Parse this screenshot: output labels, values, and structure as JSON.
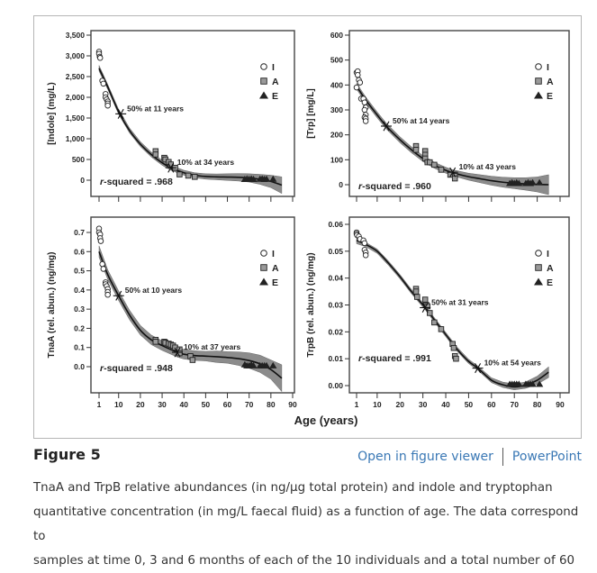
{
  "figure": {
    "title": "Figure 5",
    "links": {
      "viewer": "Open in figure viewer",
      "powerpoint": "PowerPoint"
    },
    "caption_lines": [
      "TnaA and TrpB relative abundances (in ng/µg total protein) and indole and tryptophan",
      "quantitative concentration (in mg/L faecal fluid) as a function of age. The data correspond to",
      "samples at time 0, 3 and 6 months of each of the 10 individuals and a total number of 60"
    ],
    "colors": {
      "link": "#3a78b5",
      "band": "#808080",
      "square_fill": "#9a9a9a",
      "line": "#111111"
    }
  },
  "chart_data": [
    {
      "id": "indole",
      "type": "scatter",
      "ylabel": "[Indole] (mg/L)",
      "xlabel": "",
      "ylim": [
        -650,
        3500
      ],
      "xlim": [
        -3,
        93
      ],
      "yticks": [
        0,
        500,
        1000,
        1500,
        2000,
        2500,
        3000,
        3500
      ],
      "ytick_labels": [
        "0",
        "500",
        "1,000",
        "1,500",
        "2,000",
        "2,500",
        "3,000",
        "3,500"
      ],
      "xticks": [
        1,
        10,
        20,
        30,
        40,
        50,
        60,
        70,
        80,
        90
      ],
      "xtick_labels_shown": false,
      "legend": [
        "I",
        "A",
        "E"
      ],
      "legend_position": "top-right",
      "r_squared": "r-squared = .968",
      "annotations": [
        {
          "text": "50% at 11 years",
          "x": 11,
          "y": 1600
        },
        {
          "text": "10% at 34 years",
          "x": 34,
          "y": 300
        }
      ],
      "fit": {
        "x": [
          1,
          5,
          10,
          15,
          20,
          25,
          30,
          34,
          40,
          45,
          50,
          55,
          60,
          65,
          70,
          75,
          80,
          85
        ],
        "y": [
          2700,
          2250,
          1650,
          1200,
          870,
          620,
          420,
          300,
          180,
          120,
          90,
          80,
          75,
          70,
          55,
          20,
          -30,
          -120
        ],
        "band": [
          70,
          60,
          60,
          60,
          60,
          60,
          60,
          60,
          60,
          60,
          65,
          70,
          80,
          90,
          100,
          120,
          150,
          200
        ]
      },
      "series": [
        {
          "name": "I",
          "marker": "circle",
          "x": [
            1,
            1,
            1.3,
            1.5,
            2.5,
            3,
            4,
            4,
            4.5,
            5,
            5,
            5
          ],
          "y": [
            3100,
            3050,
            2980,
            2950,
            2400,
            2330,
            2080,
            2000,
            1950,
            1900,
            1850,
            1800
          ]
        },
        {
          "name": "A",
          "marker": "square",
          "x": [
            27,
            27,
            31,
            31.5,
            33,
            34,
            36,
            38,
            42,
            45
          ],
          "y": [
            700,
            620,
            540,
            500,
            440,
            380,
            300,
            140,
            110,
            80
          ]
        },
        {
          "name": "E",
          "marker": "triangle",
          "x": [
            68,
            69,
            70,
            71,
            72,
            75,
            76,
            77,
            78,
            81
          ],
          "y": [
            20,
            30,
            20,
            30,
            20,
            25,
            30,
            20,
            25,
            25
          ]
        }
      ]
    },
    {
      "id": "trp",
      "type": "scatter",
      "ylabel": "[Trp] [mg/L]",
      "xlabel": "",
      "ylim": [
        -70,
        600
      ],
      "xlim": [
        -3,
        93
      ],
      "yticks": [
        0,
        100,
        200,
        300,
        400,
        500,
        600
      ],
      "ytick_labels": [
        "0",
        "100",
        "200",
        "300",
        "400",
        "500",
        "600"
      ],
      "xticks": [
        1,
        10,
        20,
        30,
        40,
        50,
        60,
        70,
        80,
        90
      ],
      "xtick_labels_shown": false,
      "legend": [
        "I",
        "A",
        "E"
      ],
      "legend_position": "top-right",
      "r_squared": "r-squared = .960",
      "annotations": [
        {
          "text": "50% at 14 years",
          "x": 14,
          "y": 235
        },
        {
          "text": "10% at 43 years",
          "x": 43,
          "y": 50
        }
      ],
      "fit": {
        "x": [
          1,
          5,
          10,
          14,
          20,
          25,
          30,
          35,
          40,
          43,
          50,
          55,
          60,
          65,
          70,
          75,
          80,
          85
        ],
        "y": [
          395,
          340,
          280,
          235,
          180,
          140,
          105,
          78,
          58,
          48,
          32,
          24,
          16,
          10,
          6,
          3,
          1,
          0
        ],
        "band": [
          12,
          12,
          12,
          12,
          12,
          12,
          12,
          12,
          12,
          12,
          14,
          16,
          18,
          20,
          22,
          25,
          30,
          40
        ]
      },
      "series": [
        {
          "name": "I",
          "marker": "circle",
          "x": [
            1,
            1.5,
            1.5,
            2,
            2.5,
            1,
            3,
            4,
            4.5,
            5,
            4.5,
            5,
            4.5,
            5,
            5
          ],
          "y": [
            450,
            455,
            440,
            420,
            410,
            390,
            345,
            345,
            330,
            310,
            300,
            280,
            270,
            265,
            255
          ]
        },
        {
          "name": "A",
          "marker": "square",
          "x": [
            27,
            27,
            31,
            31,
            31,
            32,
            33,
            35,
            38,
            42,
            44,
            44
          ],
          "y": [
            155,
            140,
            135,
            120,
            105,
            90,
            90,
            80,
            60,
            40,
            35,
            25
          ]
        },
        {
          "name": "E",
          "marker": "triangle",
          "x": [
            68,
            69,
            70,
            71,
            72,
            75,
            76,
            77,
            78,
            81
          ],
          "y": [
            5,
            8,
            5,
            8,
            5,
            5,
            8,
            5,
            8,
            8
          ]
        }
      ]
    },
    {
      "id": "tnaa",
      "type": "scatter",
      "ylabel": "TnaA (rel. abun.) (ng/mg)",
      "xlabel": "",
      "ylim": [
        -0.13,
        0.75
      ],
      "xlim": [
        -3,
        93
      ],
      "yticks": [
        0.0,
        0.1,
        0.2,
        0.3,
        0.4,
        0.5,
        0.6,
        0.7
      ],
      "ytick_labels": [
        "0.0",
        "0.1",
        "0.2",
        "0.3",
        "0.4",
        "0.5",
        "0.6",
        "0.7"
      ],
      "xticks": [
        1,
        10,
        20,
        30,
        40,
        50,
        60,
        70,
        80,
        90
      ],
      "xtick_labels": [
        "1",
        "10",
        "20",
        "30",
        "40",
        "50",
        "60",
        "70",
        "80",
        "90"
      ],
      "legend": [
        "I",
        "A",
        "E"
      ],
      "legend_position": "top-right",
      "r_squared": "r-squared = .948",
      "annotations": [
        {
          "text": "50% at 10 years",
          "x": 10,
          "y": 0.37
        },
        {
          "text": "10% at 37 years",
          "x": 37,
          "y": 0.075
        }
      ],
      "fit": {
        "x": [
          1,
          5,
          10,
          15,
          20,
          25,
          30,
          37,
          40,
          45,
          50,
          55,
          60,
          65,
          70,
          75,
          80,
          85
        ],
        "y": [
          0.6,
          0.48,
          0.37,
          0.27,
          0.19,
          0.14,
          0.11,
          0.075,
          0.065,
          0.058,
          0.055,
          0.052,
          0.048,
          0.042,
          0.032,
          0.015,
          -0.015,
          -0.06
        ]
      },
      "band_width": [
        0.03,
        0.025,
        0.025,
        0.025,
        0.025,
        0.025,
        0.025,
        0.025,
        0.025,
        0.025,
        0.025,
        0.03,
        0.03,
        0.035,
        0.04,
        0.045,
        0.05,
        0.07
      ],
      "series": [
        {
          "name": "I",
          "marker": "circle",
          "x": [
            1,
            1,
            1.5,
            1.5,
            1.8,
            2.5,
            3,
            4,
            4,
            4.5,
            5,
            5,
            5
          ],
          "y": [
            0.72,
            0.7,
            0.69,
            0.67,
            0.655,
            0.535,
            0.51,
            0.44,
            0.43,
            0.42,
            0.405,
            0.39,
            0.375
          ]
        },
        {
          "name": "A",
          "marker": "square",
          "x": [
            27,
            27,
            31,
            31.5,
            33,
            34,
            35,
            36,
            38,
            38,
            43,
            44
          ],
          "y": [
            0.14,
            0.13,
            0.13,
            0.125,
            0.12,
            0.115,
            0.11,
            0.1,
            0.09,
            0.07,
            0.055,
            0.035
          ]
        },
        {
          "name": "E",
          "marker": "triangle",
          "x": [
            68,
            69,
            70,
            71,
            72,
            75,
            76,
            77,
            78,
            81
          ],
          "y": [
            0.01,
            0.005,
            0.005,
            0.01,
            0.005,
            0.005,
            0.005,
            0.005,
            0.005,
            0.005
          ]
        }
      ]
    },
    {
      "id": "trpb",
      "type": "scatter",
      "ylabel": "TrpB (rel. abun.) (ng/mg)",
      "xlabel": "",
      "ylim": [
        -0.002,
        0.061
      ],
      "xlim": [
        -3,
        93
      ],
      "yticks": [
        0.0,
        0.01,
        0.02,
        0.03,
        0.04,
        0.05,
        0.06
      ],
      "ytick_labels": [
        "0.00",
        "0.01",
        "0.02",
        "0.03",
        "0.04",
        "0.05",
        "0.06"
      ],
      "xticks": [
        1,
        10,
        20,
        30,
        40,
        50,
        60,
        70,
        80,
        90
      ],
      "xtick_labels": [
        "1",
        "10",
        "20",
        "30",
        "40",
        "50",
        "60",
        "70",
        "80",
        "90"
      ],
      "legend": [
        "I",
        "A",
        "E"
      ],
      "legend_position": "top-right",
      "r_squared": "r-squared = .991",
      "annotations": [
        {
          "text": "50% at 31 years",
          "x": 31,
          "y": 0.029
        },
        {
          "text": "10% at 54 years",
          "x": 54,
          "y": 0.0065
        }
      ],
      "fit": {
        "x": [
          1,
          5,
          10,
          15,
          20,
          25,
          31,
          35,
          40,
          45,
          50,
          54,
          60,
          65,
          70,
          75,
          80,
          85
        ],
        "y": [
          0.054,
          0.0525,
          0.05,
          0.0455,
          0.0405,
          0.035,
          0.029,
          0.0245,
          0.019,
          0.0135,
          0.009,
          0.0065,
          0.002,
          0.0003,
          -0.0005,
          0.0002,
          0.002,
          0.005
        ]
      },
      "band_width": [
        0.0012,
        0.0008,
        0.0008,
        0.0008,
        0.0008,
        0.0008,
        0.0008,
        0.0008,
        0.0008,
        0.0008,
        0.0008,
        0.0008,
        0.0009,
        0.001,
        0.0011,
        0.0012,
        0.0015,
        0.002
      ],
      "series": [
        {
          "name": "I",
          "marker": "circle",
          "x": [
            1,
            1,
            1.2,
            2,
            2.5,
            4,
            4.5,
            4.5,
            5,
            5
          ],
          "y": [
            0.057,
            0.0565,
            0.056,
            0.0555,
            0.0545,
            0.054,
            0.053,
            0.0505,
            0.0495,
            0.0485
          ]
        },
        {
          "name": "A",
          "marker": "square",
          "x": [
            27,
            27,
            27.5,
            31,
            31.5,
            32,
            33,
            35,
            38,
            43,
            43.5,
            44,
            44.5
          ],
          "y": [
            0.036,
            0.035,
            0.033,
            0.032,
            0.03,
            0.0295,
            0.027,
            0.0235,
            0.021,
            0.0155,
            0.014,
            0.011,
            0.01
          ]
        },
        {
          "name": "E",
          "marker": "triangle",
          "x": [
            68,
            69,
            70,
            71,
            72,
            75,
            76,
            77,
            78,
            81
          ],
          "y": [
            0.0005,
            0.0005,
            0.0005,
            0.0005,
            0.0005,
            0.0005,
            0.0005,
            0.0005,
            0.0005,
            0.0005
          ]
        }
      ]
    }
  ],
  "shared_xlabel": "Age (years)"
}
